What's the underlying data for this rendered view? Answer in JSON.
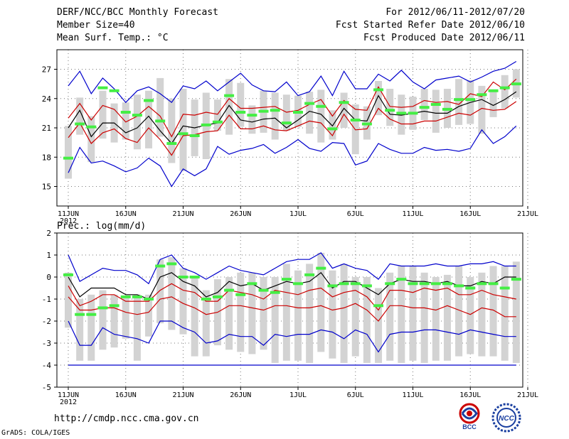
{
  "header": {
    "title": "DERF/NCC/BCC Monthly Forecast",
    "member_size": "Member Size=40",
    "variable": "Mean Surf. Temp.: °C",
    "forecast_period": "For 2012/06/11-2012/07/20",
    "start_date": "Fcst Started Refer Date 2012/06/10",
    "produced_date": "Fcst Produced Date 2012/06/11"
  },
  "footer": {
    "url": "http://cmdp.ncc.cma.gov.cn",
    "credit": "GrADS: COLA/IGES",
    "logo_bcc": "BCC",
    "logo_ncc": "NCC"
  },
  "colors": {
    "envelope": "#0000cc",
    "spread": "#cc0000",
    "mean": "#000000",
    "bar": "#d3d3d3",
    "marker": "#44ee44"
  },
  "chart_data": [
    {
      "type": "box-ensemble",
      "title": "Mean Surf. Temp.: °C",
      "ylim": [
        13,
        29
      ],
      "yticks": [
        15,
        18,
        21,
        24,
        27
      ],
      "x_ticks": [
        "11JUN",
        "16JUN",
        "21JUN",
        "26JUN",
        "1JUL",
        "6JUL",
        "11JUL",
        "16JUL",
        "21JUL"
      ],
      "x_sublabel": "2012",
      "days": 40,
      "series": [
        {
          "name": "max",
          "values": [
            25.3,
            26.8,
            24.5,
            26.1,
            25.0,
            23.6,
            24.8,
            25.2,
            24.5,
            23.6,
            25.3,
            25.0,
            25.8,
            24.8,
            25.7,
            26.6,
            25.4,
            24.8,
            24.7,
            25.7,
            24.3,
            24.7,
            26.3,
            24.3,
            26.8,
            25.0,
            25.0,
            26.5,
            25.8,
            26.9,
            25.7,
            25.0,
            25.9,
            26.1,
            26.3,
            25.7,
            26.2,
            26.8,
            27.1,
            27.8
          ]
        },
        {
          "name": "p_high",
          "values": [
            22.0,
            23.5,
            21.8,
            23.3,
            22.9,
            21.6,
            22.2,
            23.2,
            22.2,
            20.1,
            22.4,
            22.3,
            22.6,
            22.4,
            24.0,
            23.0,
            23.0,
            23.1,
            23.2,
            22.6,
            22.8,
            23.4,
            23.9,
            22.2,
            23.8,
            22.9,
            22.8,
            25.2,
            23.2,
            23.1,
            23.2,
            23.8,
            23.6,
            23.7,
            23.4,
            24.5,
            24.2,
            25.7,
            24.9,
            26.0
          ]
        },
        {
          "name": "mean",
          "values": [
            21.0,
            22.8,
            20.1,
            21.5,
            21.5,
            20.5,
            21.0,
            22.2,
            20.7,
            19.4,
            21.2,
            21.0,
            21.3,
            21.5,
            23.3,
            21.8,
            21.6,
            21.9,
            22.0,
            21.0,
            21.8,
            22.7,
            22.4,
            21.2,
            23.0,
            21.8,
            21.7,
            24.3,
            22.4,
            22.3,
            22.5,
            22.7,
            22.5,
            22.5,
            23.2,
            23.6,
            23.9,
            23.3,
            23.9,
            24.7
          ]
        },
        {
          "name": "p_low",
          "values": [
            20.0,
            21.5,
            19.4,
            20.5,
            20.9,
            19.9,
            19.5,
            21.0,
            19.8,
            18.2,
            20.2,
            20.3,
            20.6,
            20.7,
            22.3,
            20.9,
            20.9,
            21.2,
            20.8,
            20.7,
            21.2,
            21.7,
            21.5,
            20.2,
            22.4,
            20.8,
            20.9,
            23.0,
            21.9,
            21.4,
            21.4,
            21.7,
            21.7,
            22.1,
            22.5,
            22.3,
            23.0,
            22.8,
            22.9,
            23.7
          ]
        },
        {
          "name": "min",
          "values": [
            16.4,
            19.0,
            17.4,
            17.6,
            17.1,
            16.5,
            16.9,
            17.9,
            17.1,
            15.0,
            16.8,
            16.1,
            16.8,
            19.1,
            18.3,
            18.7,
            18.9,
            19.3,
            18.4,
            19.0,
            19.8,
            18.9,
            18.6,
            19.5,
            19.4,
            17.2,
            17.6,
            19.4,
            18.8,
            18.4,
            18.4,
            19.0,
            18.7,
            18.8,
            18.6,
            18.9,
            20.8,
            19.4,
            20.1,
            21.2
          ]
        },
        {
          "name": "bar_top",
          "values": [
            21.2,
            24.1,
            22.2,
            24.8,
            23.5,
            23.6,
            24.4,
            24.8,
            26.1,
            24.0,
            25.0,
            23.9,
            24.6,
            23.9,
            26.0,
            25.6,
            23.3,
            24.8,
            24.6,
            24.4,
            24.3,
            24.7,
            24.9,
            22.8,
            24.6,
            23.4,
            23.2,
            25.8,
            25.0,
            24.4,
            24.2,
            25.0,
            24.9,
            25.0,
            26.0,
            25.9,
            25.3,
            24.8,
            26.4,
            27.0
          ]
        },
        {
          "name": "bar_bottom",
          "values": [
            15.8,
            20.3,
            17.5,
            19.9,
            19.5,
            19.8,
            18.8,
            18.9,
            20.1,
            17.4,
            16.6,
            18.1,
            17.8,
            20.7,
            20.3,
            21.1,
            20.4,
            20.5,
            19.8,
            20.7,
            21.1,
            20.4,
            19.5,
            19.8,
            21.0,
            18.3,
            19.8,
            22.3,
            21.2,
            20.3,
            20.8,
            21.8,
            20.5,
            21.0,
            21.3,
            21.4,
            20.4,
            22.1,
            23.0,
            24.1
          ]
        },
        {
          "name": "member_marker",
          "values": [
            17.9,
            21.4,
            21.1,
            25.1,
            24.8,
            22.6,
            22.3,
            23.8,
            21.7,
            19.4,
            20.4,
            20.2,
            21.3,
            21.6,
            24.3,
            22.6,
            22.3,
            22.7,
            22.8,
            21.5,
            22.6,
            23.5,
            23.2,
            20.9,
            23.6,
            21.8,
            21.4,
            24.9,
            22.8,
            22.5,
            22.5,
            23.1,
            23.4,
            22.9,
            23.9,
            23.9,
            24.4,
            24.8,
            25.1,
            25.5
          ]
        }
      ]
    },
    {
      "type": "box-ensemble",
      "title": "Prec.: log(mm/d)",
      "ylim": [
        -5,
        2
      ],
      "yticks": [
        -5,
        -4,
        -3,
        -2,
        -1,
        0,
        1,
        2
      ],
      "x_ticks": [
        "11JUN",
        "16JUN",
        "21JUN",
        "26JUN",
        "1JUL",
        "6JUL",
        "11JUL",
        "16JUL",
        "21JUL"
      ],
      "x_sublabel": "2012",
      "days": 40,
      "series": [
        {
          "name": "max",
          "values": [
            1.0,
            -0.2,
            0.1,
            0.4,
            0.3,
            0.3,
            0.1,
            -0.3,
            0.8,
            1.0,
            0.4,
            0.2,
            -0.1,
            0.2,
            0.5,
            0.3,
            0.2,
            0.1,
            0.4,
            0.7,
            0.8,
            0.8,
            1.1,
            0.4,
            0.6,
            0.4,
            0.3,
            -0.1,
            0.6,
            0.5,
            0.5,
            0.5,
            0.6,
            0.5,
            0.5,
            0.6,
            0.6,
            0.7,
            0.5,
            0.5
          ]
        },
        {
          "name": "mean",
          "values": [
            0.0,
            -0.9,
            -0.5,
            -0.5,
            -0.5,
            -0.8,
            -0.8,
            -1.0,
            0.0,
            0.2,
            -0.2,
            -0.4,
            -0.9,
            -0.7,
            -0.2,
            -0.4,
            -0.3,
            -0.6,
            -0.4,
            -0.2,
            -0.3,
            -0.2,
            0.2,
            -0.5,
            -0.2,
            -0.2,
            -0.5,
            -0.8,
            -0.3,
            -0.1,
            -0.2,
            -0.2,
            -0.3,
            -0.2,
            -0.4,
            -0.4,
            -0.2,
            -0.3,
            0.0,
            0.0
          ]
        },
        {
          "name": "p_high",
          "values": [
            -0.4,
            -1.3,
            -1.1,
            -0.8,
            -0.8,
            -1.1,
            -1.1,
            -1.1,
            -0.6,
            -0.3,
            -0.6,
            -0.7,
            -1.1,
            -1.1,
            -0.6,
            -0.7,
            -0.8,
            -1.0,
            -0.6,
            -0.7,
            -0.8,
            -0.6,
            -0.5,
            -0.9,
            -0.7,
            -0.6,
            -0.9,
            -1.5,
            -0.6,
            -0.6,
            -0.7,
            -0.5,
            -0.6,
            -0.5,
            -0.8,
            -0.8,
            -0.6,
            -0.8,
            -0.9,
            -1.0
          ]
        },
        {
          "name": "p_low",
          "values": [
            -0.9,
            -1.5,
            -1.5,
            -1.4,
            -1.4,
            -1.6,
            -1.7,
            -1.6,
            -1.0,
            -0.9,
            -1.2,
            -1.4,
            -1.7,
            -1.6,
            -1.3,
            -1.3,
            -1.4,
            -1.5,
            -1.3,
            -1.3,
            -1.4,
            -1.4,
            -1.3,
            -1.5,
            -1.4,
            -1.2,
            -1.5,
            -2.0,
            -1.3,
            -1.3,
            -1.4,
            -1.4,
            -1.5,
            -1.3,
            -1.5,
            -1.7,
            -1.4,
            -1.5,
            -1.8,
            -1.8
          ]
        },
        {
          "name": "min",
          "values": [
            -2.0,
            -3.1,
            -3.1,
            -2.3,
            -2.6,
            -2.7,
            -2.8,
            -3.0,
            -2.0,
            -2.0,
            -2.3,
            -2.5,
            -3.0,
            -2.9,
            -2.6,
            -2.7,
            -2.7,
            -3.1,
            -2.6,
            -2.7,
            -2.6,
            -2.6,
            -2.4,
            -2.5,
            -2.8,
            -2.4,
            -2.6,
            -3.4,
            -2.6,
            -2.5,
            -2.5,
            -2.4,
            -2.4,
            -2.5,
            -2.6,
            -2.4,
            -2.5,
            -2.6,
            -2.7,
            -2.7
          ]
        },
        {
          "name": "floor",
          "values": [
            -4.0,
            -4.0,
            -4.0,
            -4.0,
            -4.0,
            -4.0,
            -4.0,
            -4.0,
            -4.0,
            -4.0,
            -4.0,
            -4.0,
            -4.0,
            -4.0,
            -4.0,
            -4.0,
            -4.0,
            -4.0,
            -4.0,
            -4.0,
            -4.0,
            -4.0,
            -4.0,
            -4.0,
            -4.0,
            -4.0,
            -4.0,
            -4.0,
            -4.0,
            -4.0,
            -4.0,
            -4.0,
            -4.0,
            -4.0,
            -4.0,
            -4.0,
            -4.0,
            -4.0,
            -4.0,
            -4.0
          ]
        },
        {
          "name": "bar_top",
          "values": [
            0.2,
            -1.0,
            -0.8,
            -0.6,
            -0.8,
            -0.9,
            -0.8,
            -0.8,
            0.8,
            0.9,
            0.4,
            0.0,
            -0.6,
            -0.1,
            0.0,
            0.2,
            0.2,
            0.0,
            0.0,
            0.6,
            0.3,
            0.6,
            1.1,
            0.3,
            0.6,
            0.0,
            0.0,
            -0.5,
            0.2,
            0.5,
            0.5,
            0.2,
            0.0,
            0.1,
            0.5,
            0.0,
            0.2,
            0.5,
            0.5,
            0.7
          ]
        },
        {
          "name": "bar_bottom",
          "values": [
            -2.3,
            -3.8,
            -3.8,
            -3.3,
            -3.2,
            -2.8,
            -3.8,
            -2.7,
            -2.1,
            -2.4,
            -2.6,
            -3.6,
            -3.6,
            -3.1,
            -3.3,
            -3.4,
            -3.5,
            -3.3,
            -3.9,
            -3.8,
            -3.8,
            -3.9,
            -3.4,
            -3.7,
            -3.9,
            -3.6,
            -3.9,
            -3.9,
            -3.8,
            -3.9,
            -3.8,
            -3.9,
            -3.8,
            -3.8,
            -3.6,
            -3.5,
            -3.6,
            -3.6,
            -3.8,
            -3.9
          ]
        },
        {
          "name": "member_marker",
          "values": [
            0.1,
            -1.7,
            -1.7,
            -1.4,
            -1.3,
            -0.9,
            -0.9,
            -1.0,
            0.5,
            0.6,
            0.0,
            0.0,
            -1.0,
            -0.9,
            -0.6,
            -0.8,
            -0.3,
            -0.6,
            -0.7,
            -0.1,
            -0.3,
            0.1,
            0.4,
            -0.4,
            -0.3,
            -0.3,
            -0.4,
            -1.3,
            -0.3,
            -0.1,
            -0.3,
            -0.3,
            -0.3,
            -0.3,
            -0.4,
            -0.5,
            -0.3,
            -0.3,
            -0.5,
            -0.1
          ]
        }
      ]
    }
  ]
}
